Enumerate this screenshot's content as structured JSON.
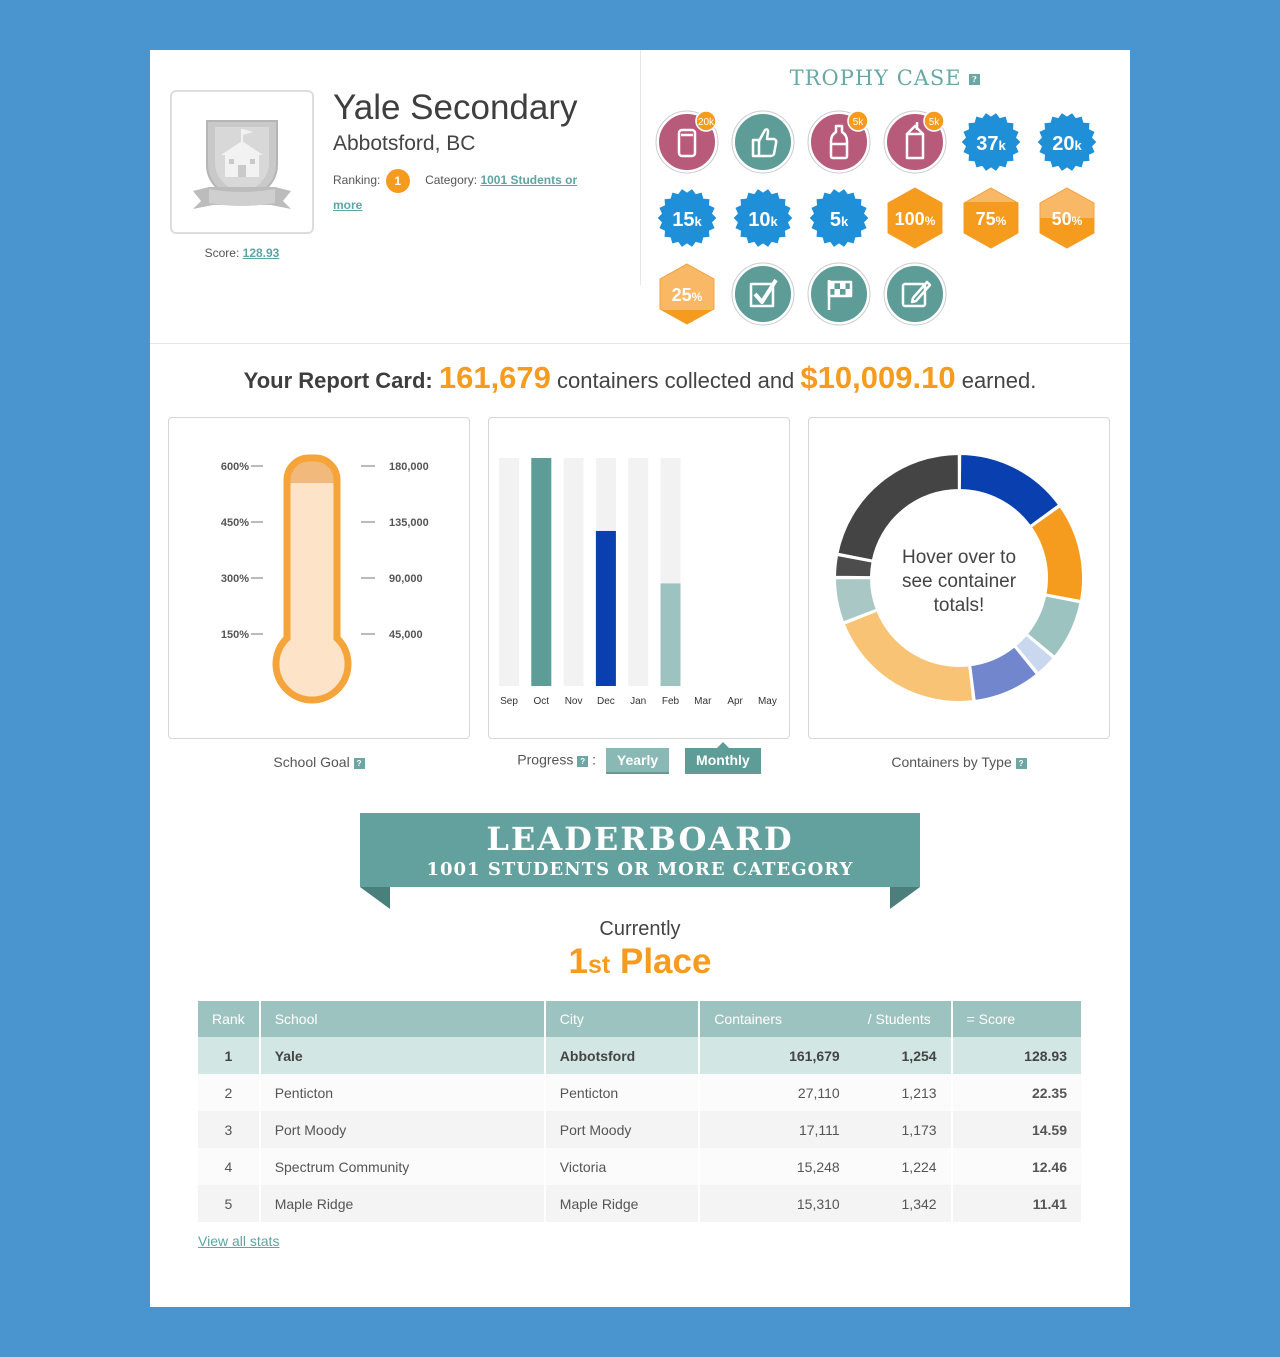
{
  "school": {
    "name": "Yale Secondary",
    "city": "Abbotsford, BC",
    "ranking_label": "Ranking:",
    "rank": "1",
    "category_label": "Category:",
    "category": "1001 Students or more",
    "score_label": "Score:",
    "score": "128.93"
  },
  "trophy_case": {
    "title": "TROPHY CASE",
    "help": "?",
    "trophies": [
      {
        "icon": "can-icon",
        "badge": "20k",
        "color": "#b85a7a"
      },
      {
        "icon": "thumbs-up-icon",
        "badge": "",
        "color": "#5e9c98"
      },
      {
        "icon": "bottle-icon",
        "badge": "5k",
        "color": "#b85a7a"
      },
      {
        "icon": "carton-icon",
        "badge": "5k",
        "color": "#b85a7a"
      },
      {
        "icon": "starburst",
        "num": "37",
        "unit": "k",
        "color": "#1f8fd8"
      },
      {
        "icon": "starburst",
        "num": "20",
        "unit": "k",
        "color": "#1f8fd8"
      },
      {
        "icon": "starburst",
        "num": "15",
        "unit": "k",
        "color": "#1f8fd8"
      },
      {
        "icon": "starburst",
        "num": "10",
        "unit": "k",
        "color": "#1f8fd8"
      },
      {
        "icon": "starburst",
        "num": "5",
        "unit": "k",
        "color": "#1f8fd8"
      },
      {
        "icon": "hexagon",
        "num": "100",
        "unit": "%",
        "color": "#f59b1e",
        "fill": 1.0
      },
      {
        "icon": "hexagon",
        "num": "75",
        "unit": "%",
        "color": "#f59b1e",
        "fill": 0.75
      },
      {
        "icon": "hexagon",
        "num": "50",
        "unit": "%",
        "color": "#f59b1e",
        "fill": 0.5
      },
      {
        "icon": "hexagon",
        "num": "25",
        "unit": "%",
        "color": "#f59b1e",
        "fill": 0.25
      },
      {
        "icon": "checkbox-icon",
        "badge": "",
        "color": "#5e9c98"
      },
      {
        "icon": "checkered-flag-icon",
        "badge": "",
        "color": "#5e9c98"
      },
      {
        "icon": "edit-icon",
        "badge": "",
        "color": "#5e9c98"
      }
    ]
  },
  "report": {
    "prefix": "Your Report Card:",
    "containers": "161,679",
    "middle": "containers collected and",
    "earned": "$10,009.10",
    "suffix": "earned."
  },
  "panels": {
    "goal_label": "School Goal",
    "progress_label": "Progress",
    "progress_colon": ":",
    "yearly": "Yearly",
    "monthly": "Monthly",
    "types_label": "Containers by Type",
    "donut_center": "Hover over to see container totals!"
  },
  "chart_data": [
    {
      "type": "thermometer",
      "left_ticks": [
        "600%",
        "450%",
        "300%",
        "150%"
      ],
      "right_ticks": [
        "180,000",
        "135,000",
        "90,000",
        "45,000"
      ],
      "ylim": [
        0,
        180000
      ],
      "value": 161679,
      "colors": {
        "border": "#f5a43a",
        "fill": "#fde3c8",
        "top": "#f2b97d"
      }
    },
    {
      "type": "bar",
      "categories": [
        "Sep",
        "Oct",
        "Nov",
        "Dec",
        "Jan",
        "Feb",
        "Mar",
        "Apr",
        "May"
      ],
      "max": [
        1,
        1,
        1,
        1,
        1,
        1,
        0,
        0,
        0
      ],
      "values": [
        0,
        1.0,
        0,
        0.68,
        0,
        0.45,
        0,
        0,
        0
      ],
      "colors": [
        "#5e9c98",
        "#5e9c98",
        "#5e9c98",
        "#0a3fb0",
        "#5e9c98",
        "#9dc3c0",
        "#5e9c98",
        "#5e9c98",
        "#5e9c98"
      ],
      "track_color": "#f2f2f2"
    },
    {
      "type": "pie",
      "values": [
        15,
        13,
        8,
        3,
        9,
        21,
        6,
        3,
        22
      ],
      "colors": [
        "#0a3fb0",
        "#f59b1e",
        "#9dc3c0",
        "#c9d8ef",
        "#7186cc",
        "#f8c374",
        "#a8c7c5",
        "#4d4d4d",
        "#444444"
      ]
    }
  ],
  "leaderboard": {
    "title": "LEADERBOARD",
    "subtitle": "1001 STUDENTS OR MORE CATEGORY",
    "currently": "Currently",
    "place_num": "1",
    "place_suffix": "st",
    "place_word": "Place",
    "columns": [
      "Rank",
      "School",
      "City",
      "Containers",
      "/ Students",
      "= Score"
    ],
    "rows": [
      {
        "rank": "1",
        "school": "Yale",
        "city": "Abbotsford",
        "containers": "161,679",
        "students": "1,254",
        "score": "128.93"
      },
      {
        "rank": "2",
        "school": "Penticton",
        "city": "Penticton",
        "containers": "27,110",
        "students": "1,213",
        "score": "22.35"
      },
      {
        "rank": "3",
        "school": "Port Moody",
        "city": "Port Moody",
        "containers": "17,111",
        "students": "1,173",
        "score": "14.59"
      },
      {
        "rank": "4",
        "school": "Spectrum Community",
        "city": "Victoria",
        "containers": "15,248",
        "students": "1,224",
        "score": "12.46"
      },
      {
        "rank": "5",
        "school": "Maple Ridge",
        "city": "Maple Ridge",
        "containers": "15,310",
        "students": "1,342",
        "score": "11.41"
      }
    ],
    "view_all": "View all stats"
  }
}
